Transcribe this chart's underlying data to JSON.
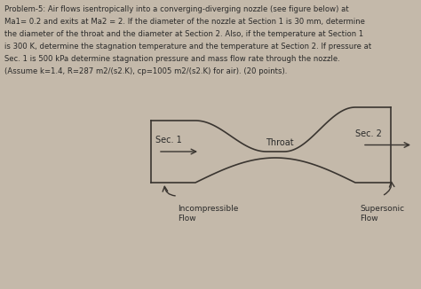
{
  "background_color": "#c4b9aa",
  "text_color": "#2a2a2a",
  "nozzle_color": "#3a3530",
  "label_throat": "Throat",
  "label_sec1": "Sec. 1",
  "label_sec2": "Sec. 2",
  "label_incompressible": "Incompressible\nFlow",
  "label_supersonic": "Supersonic\nFlow",
  "problem_text_line1": "Problem-5: Air flows isentropically into a converging-diverging nozzle (see figure below) at",
  "problem_text_line2": "Ma1= 0.2 and exits at Ma2 = 2. If the diameter of the nozzle at Section 1 is 30 mm, determine",
  "problem_text_line3": "the diameter of the throat and the diameter at Section 2. Also, if the temperature at Section 1",
  "problem_text_line4": "is 300 K, determine the stagnation temperature and the temperature at Section 2. If pressure at",
  "problem_text_line5": "Sec. 1 is 500 kPa determine stagnation pressure and mass flow rate through the nozzle.",
  "problem_text_line6": "(Assume k=1.4, R=287 m2/(s2.K), cp=1005 m2/(s2.K) for air). (20 points)."
}
